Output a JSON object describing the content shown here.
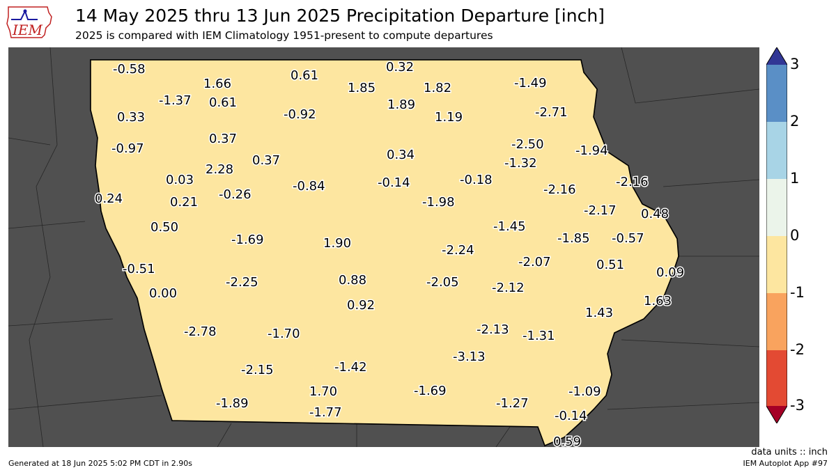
{
  "header": {
    "title": "14 May 2025 thru 13 Jun 2025 Precipitation Departure [inch]",
    "subtitle": "2025 is compared with IEM Climatology 1951-present to compute departures",
    "logo_text": "IEM"
  },
  "colorbar": {
    "labels": [
      "3",
      "2",
      "1",
      "0",
      "-1",
      "-2",
      "-3"
    ],
    "bins": [
      {
        "from": 2,
        "to": 3,
        "color": "#5a8fc6"
      },
      {
        "from": 1,
        "to": 2,
        "color": "#a8d4e6"
      },
      {
        "from": 0,
        "to": 1,
        "color": "#ebf4ea"
      },
      {
        "from": -1,
        "to": 0,
        "color": "#fde6a0"
      },
      {
        "from": -2,
        "to": -1,
        "color": "#f9a35e"
      },
      {
        "from": -3,
        "to": -2,
        "color": "#e34a33"
      }
    ],
    "over_color": "#313695",
    "under_color": "#a50026"
  },
  "map": {
    "outside_color": "#505050",
    "station_values": [
      "-0.58",
      "1.66",
      "0.61",
      "0.32",
      "-1.49",
      "-1.37",
      "0.61",
      "1.85",
      "1.82",
      "0.33",
      "-0.92",
      "1.89",
      "1.19",
      "-2.71",
      "0.37",
      "-0.97",
      "-2.50",
      "-1.94",
      "0.34",
      "2.28",
      "0.37",
      "-1.32",
      "0.03",
      "-0.84",
      "-0.14",
      "-0.18",
      "-2.16",
      "-2.16",
      "0.24",
      "0.21",
      "-0.26",
      "-1.98",
      "-2.17",
      "0.48",
      "0.50",
      "-1.45",
      "-1.69",
      "1.90",
      "-1.85",
      "-0.57",
      "-2.24",
      "-0.51",
      "-2.07",
      "0.51",
      "0.09",
      "-2.25",
      "0.88",
      "-2.05",
      "-2.12",
      "0.00",
      "0.92",
      "1.43",
      "1.63",
      "-2.78",
      "-1.70",
      "-2.13",
      "-1.31",
      "-3.13",
      "-1.42",
      "-2.15",
      "1.70",
      "-1.69",
      "-1.09",
      "-1.89",
      "-1.77",
      "-1.27",
      "-0.14",
      "0.59"
    ]
  },
  "footer": {
    "units": "data units :: inch",
    "generated": "Generated at 18 Jun 2025 5:02 PM CDT in 2.90s",
    "app": "IEM Autoplot App #97"
  }
}
